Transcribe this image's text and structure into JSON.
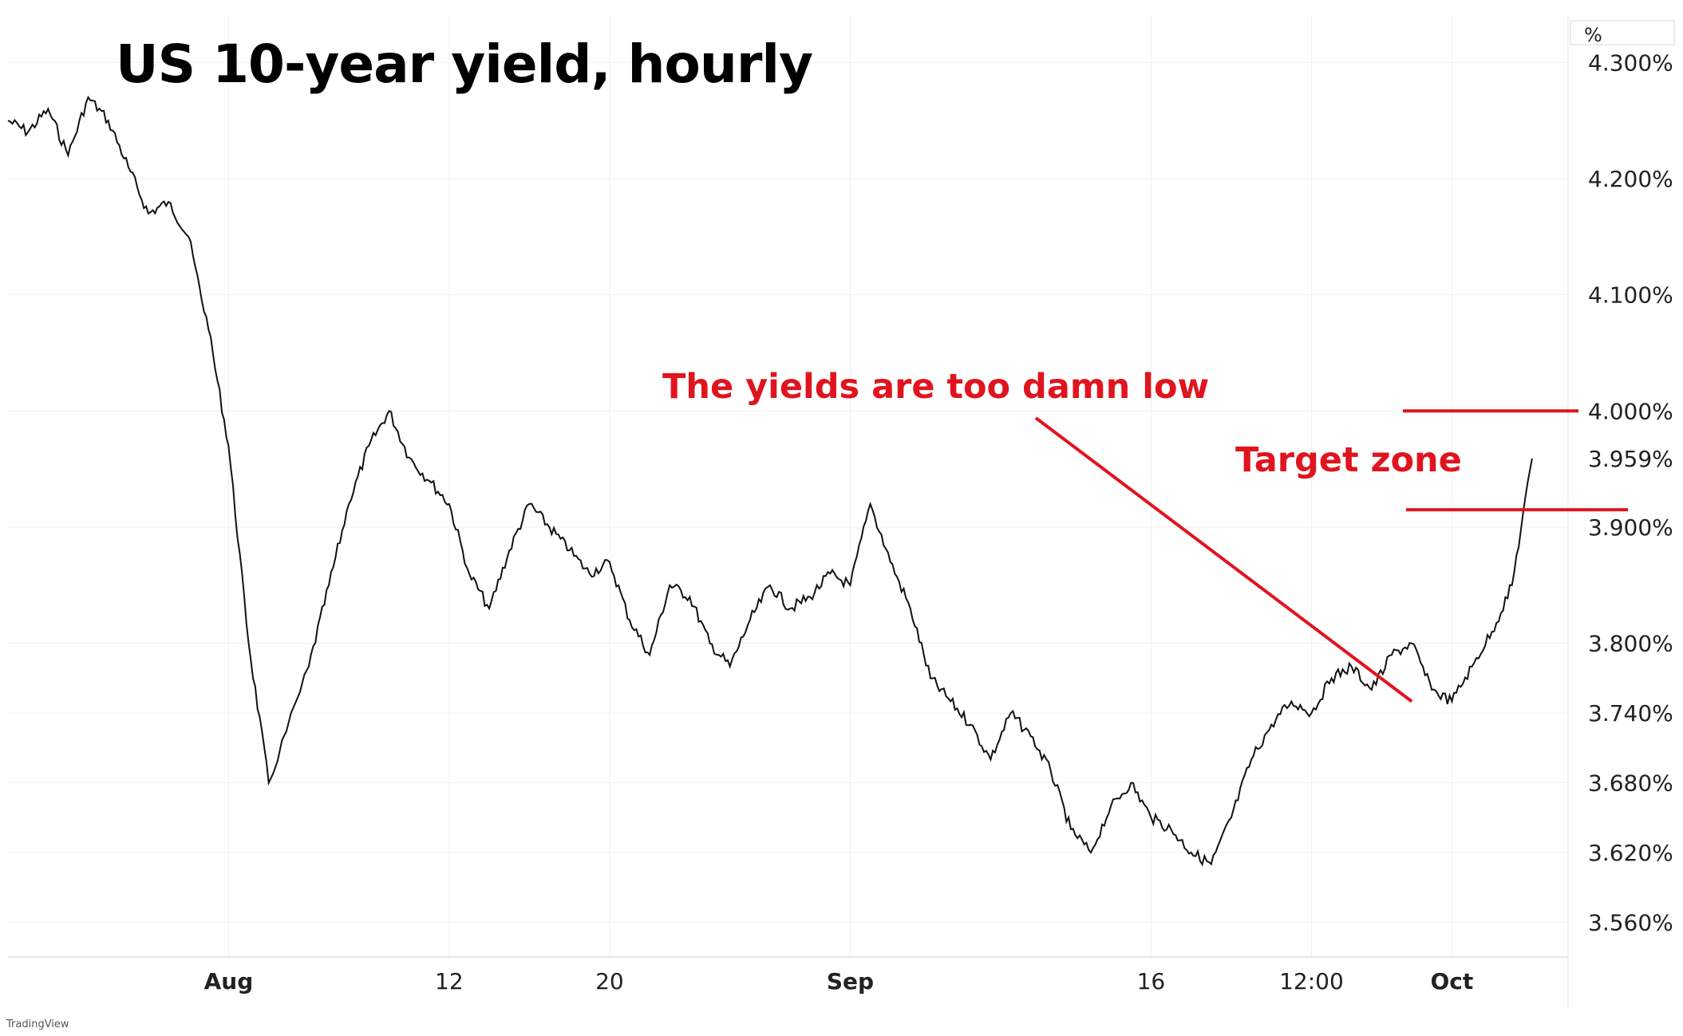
{
  "title": "US 10-year yield, hourly",
  "brand": "TradingView",
  "colors": {
    "price": "#111111",
    "annotation": "#e0141e",
    "grid": "#f0f0f0",
    "axis_text": "#222222"
  },
  "annotations": {
    "too_low": "The yields are too damn low",
    "target": "Target zone"
  },
  "chart_data": {
    "type": "line",
    "title": "US 10-year yield, hourly",
    "ylabel": "%",
    "ylim": [
      3.53,
      4.34
    ],
    "y_ticks": [
      "4.300%",
      "4.200%",
      "4.100%",
      "4.000%",
      "3.959%",
      "3.900%",
      "3.800%",
      "3.740%",
      "3.680%",
      "3.620%",
      "3.560%"
    ],
    "y_tick_values": [
      4.3,
      4.2,
      4.1,
      4.0,
      3.959,
      3.9,
      3.8,
      3.74,
      3.68,
      3.62,
      3.56
    ],
    "current_value": 3.959,
    "x_ticks": [
      "Aug",
      "12",
      "20",
      "Sep",
      "16",
      "12:00",
      "Oct"
    ],
    "x_tick_dates": [
      "2024-08-01",
      "2024-08-12",
      "2024-08-20",
      "2024-09-01",
      "2024-09-16",
      "2024-09-24",
      "2024-10-01"
    ],
    "x_range": [
      "2024-07-21",
      "2024-10-06"
    ],
    "series": [
      {
        "x": [
          "2024-07-21",
          "2024-07-22",
          "2024-07-23",
          "2024-07-24",
          "2024-07-25",
          "2024-07-26",
          "2024-07-27",
          "2024-07-28",
          "2024-07-29",
          "2024-07-30",
          "2024-07-31",
          "2024-08-01",
          "2024-08-02",
          "2024-08-03",
          "2024-08-05",
          "2024-08-06",
          "2024-08-07",
          "2024-08-08",
          "2024-08-09",
          "2024-08-10",
          "2024-08-11",
          "2024-08-12",
          "2024-08-13",
          "2024-08-14",
          "2024-08-15",
          "2024-08-16",
          "2024-08-17",
          "2024-08-18",
          "2024-08-19",
          "2024-08-20",
          "2024-08-21",
          "2024-08-22",
          "2024-08-23",
          "2024-08-24",
          "2024-08-25",
          "2024-08-26",
          "2024-08-27",
          "2024-08-28",
          "2024-08-29",
          "2024-08-30",
          "2024-08-31",
          "2024-09-01",
          "2024-09-02",
          "2024-09-03",
          "2024-09-04",
          "2024-09-05",
          "2024-09-06",
          "2024-09-07",
          "2024-09-08",
          "2024-09-09",
          "2024-09-10",
          "2024-09-11",
          "2024-09-12",
          "2024-09-13",
          "2024-09-14",
          "2024-09-15",
          "2024-09-16",
          "2024-09-17",
          "2024-09-18",
          "2024-09-19",
          "2024-09-20",
          "2024-09-21",
          "2024-09-22",
          "2024-09-23",
          "2024-09-24",
          "2024-09-25",
          "2024-09-26",
          "2024-09-27",
          "2024-09-28",
          "2024-09-29",
          "2024-09-30",
          "2024-10-01",
          "2024-10-02",
          "2024-10-03",
          "2024-10-04",
          "2024-10-05"
        ],
        "y": [
          4.25,
          4.24,
          4.26,
          4.22,
          4.27,
          4.25,
          4.21,
          4.17,
          4.18,
          4.15,
          4.07,
          3.97,
          3.8,
          3.68,
          3.78,
          3.85,
          3.92,
          3.97,
          4.0,
          3.96,
          3.94,
          3.92,
          3.86,
          3.83,
          3.88,
          3.92,
          3.9,
          3.88,
          3.86,
          3.87,
          3.82,
          3.79,
          3.85,
          3.84,
          3.8,
          3.78,
          3.82,
          3.85,
          3.83,
          3.84,
          3.86,
          3.85,
          3.92,
          3.87,
          3.83,
          3.77,
          3.75,
          3.73,
          3.7,
          3.74,
          3.72,
          3.69,
          3.64,
          3.62,
          3.66,
          3.68,
          3.65,
          3.64,
          3.62,
          3.61,
          3.65,
          3.7,
          3.73,
          3.75,
          3.74,
          3.77,
          3.78,
          3.76,
          3.79,
          3.8,
          3.76,
          3.75,
          3.78,
          3.81,
          3.85,
          3.959
        ]
      }
    ]
  },
  "annotation_lines": {
    "target_upper": 4.0,
    "target_lower": 3.915,
    "arrow_from_date": "2024-09-09",
    "arrow_to_date": "2024-09-29",
    "arrow_to_value": 3.75
  }
}
